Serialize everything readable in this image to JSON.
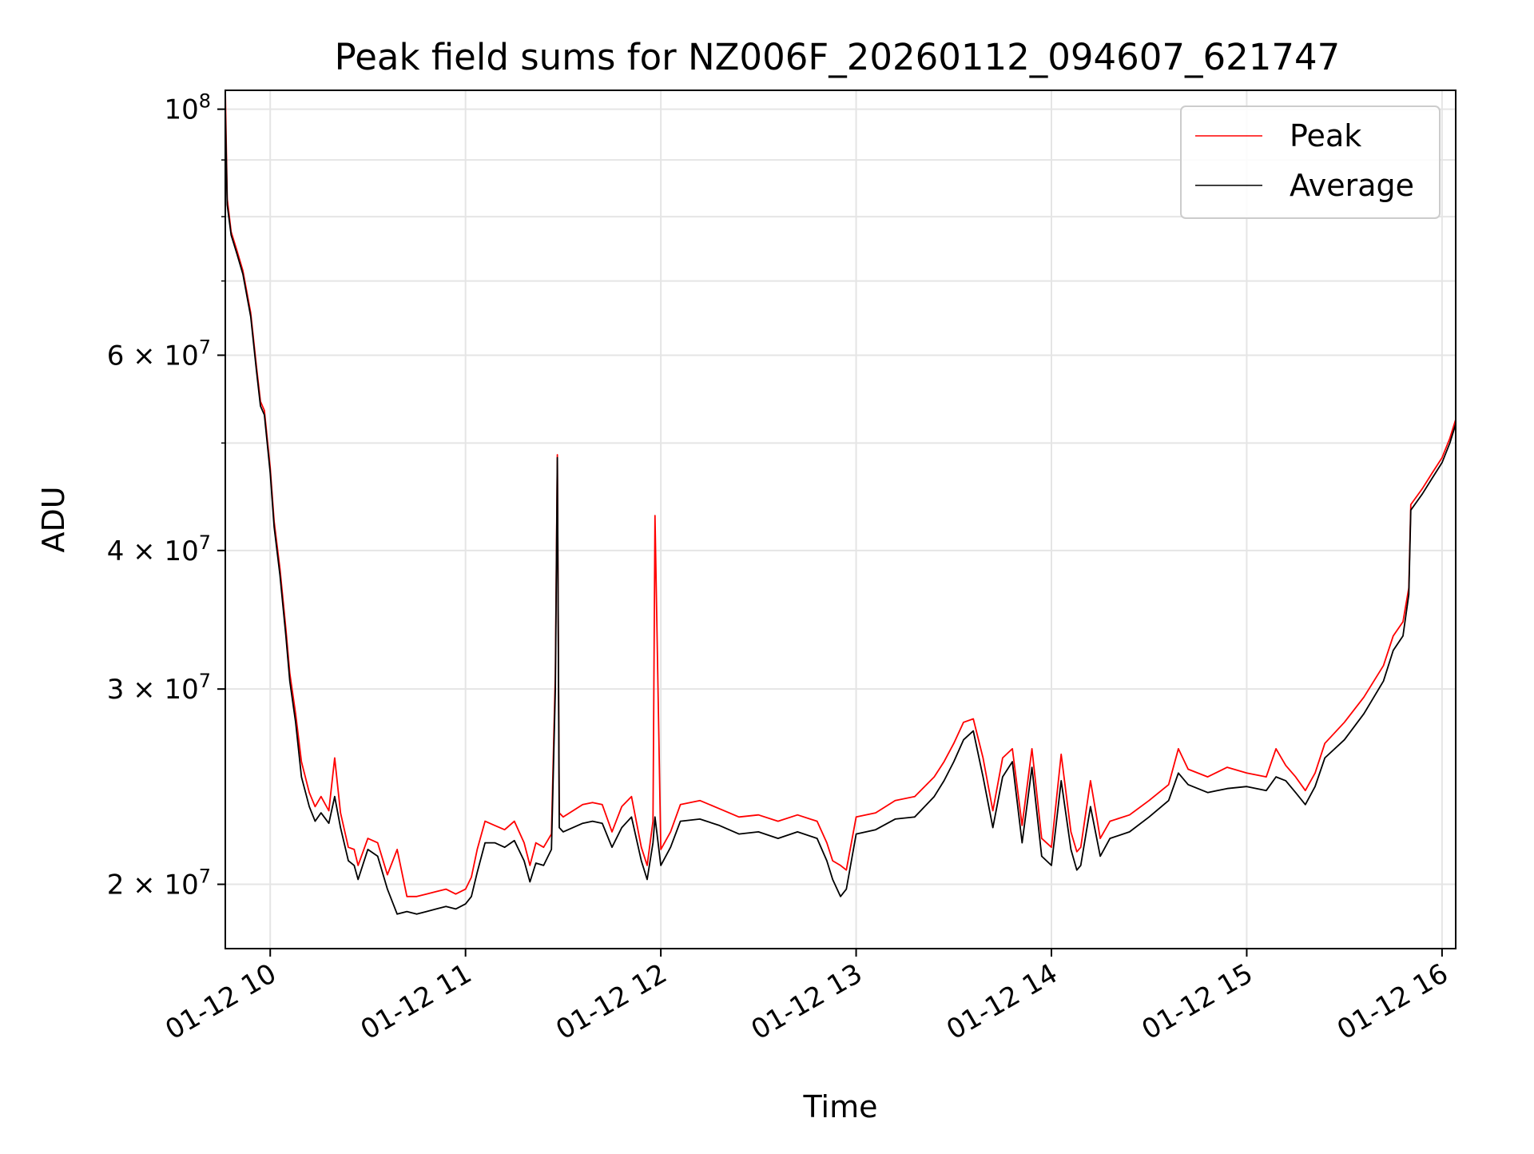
{
  "chart_data": {
    "type": "line",
    "title": "Peak field sums for NZ006F_20260112_094607_621747",
    "xlabel": "Time",
    "ylabel": "ADU",
    "yscale": "log",
    "x_unit": "hours (clock time, 2026-01-12)",
    "xlim": [
      9.77,
      16.07
    ],
    "ylim": [
      17500000,
      104000000
    ],
    "grid": true,
    "legend_position": "top-right",
    "x_ticks": [
      {
        "value": 10,
        "label": "01-12 10"
      },
      {
        "value": 11,
        "label": "01-12 11"
      },
      {
        "value": 12,
        "label": "01-12 12"
      },
      {
        "value": 13,
        "label": "01-12 13"
      },
      {
        "value": 14,
        "label": "01-12 14"
      },
      {
        "value": 15,
        "label": "01-12 15"
      },
      {
        "value": 16,
        "label": "01-12 16"
      }
    ],
    "y_major_ticks": [
      {
        "value": 100000000,
        "base": "10",
        "exp": "8"
      },
      {
        "value": 60000000,
        "base": "6 × 10",
        "exp": "7"
      },
      {
        "value": 40000000,
        "base": "4 × 10",
        "exp": "7"
      },
      {
        "value": 30000000,
        "base": "3 × 10",
        "exp": "7"
      },
      {
        "value": 20000000,
        "base": "2 × 10",
        "exp": "7"
      }
    ],
    "y_minor_ticks": [
      90000000,
      80000000,
      70000000,
      50000000
    ],
    "series": [
      {
        "name": "Average",
        "color": "#000000",
        "x": [
          9.77,
          9.78,
          9.8,
          9.83,
          9.86,
          9.9,
          9.93,
          9.95,
          9.97,
          10.0,
          10.02,
          10.05,
          10.08,
          10.1,
          10.13,
          10.16,
          10.2,
          10.23,
          10.26,
          10.3,
          10.33,
          10.36,
          10.4,
          10.43,
          10.45,
          10.5,
          10.55,
          10.6,
          10.65,
          10.7,
          10.75,
          10.8,
          10.85,
          10.9,
          10.95,
          11.0,
          11.03,
          11.06,
          11.1,
          11.15,
          11.2,
          11.25,
          11.3,
          11.33,
          11.36,
          11.4,
          11.44,
          11.46,
          11.47,
          11.48,
          11.5,
          11.55,
          11.6,
          11.65,
          11.7,
          11.75,
          11.8,
          11.85,
          11.9,
          11.93,
          11.96,
          11.97,
          12.0,
          12.05,
          12.1,
          12.2,
          12.3,
          12.4,
          12.5,
          12.6,
          12.7,
          12.8,
          12.85,
          12.88,
          12.92,
          12.95,
          13.0,
          13.1,
          13.2,
          13.3,
          13.4,
          13.45,
          13.5,
          13.55,
          13.6,
          13.65,
          13.7,
          13.75,
          13.8,
          13.85,
          13.9,
          13.95,
          14.0,
          14.05,
          14.1,
          14.13,
          14.15,
          14.2,
          14.25,
          14.3,
          14.4,
          14.5,
          14.6,
          14.65,
          14.7,
          14.8,
          14.9,
          15.0,
          15.1,
          15.15,
          15.2,
          15.25,
          15.3,
          15.35,
          15.4,
          15.5,
          15.6,
          15.7,
          15.75,
          15.8,
          15.83,
          15.84,
          15.9,
          15.95,
          16.0,
          16.04,
          16.07
        ],
        "values": [
          100000000,
          82000000,
          77000000,
          74000000,
          71000000,
          65000000,
          58000000,
          54000000,
          53000000,
          47000000,
          42000000,
          38000000,
          33500000,
          30500000,
          28000000,
          25000000,
          23500000,
          22800000,
          23200000,
          22700000,
          24000000,
          22500000,
          21000000,
          20800000,
          20200000,
          21500000,
          21200000,
          19800000,
          18800000,
          18900000,
          18800000,
          18900000,
          19000000,
          19100000,
          19000000,
          19200000,
          19500000,
          20500000,
          21800000,
          21800000,
          21600000,
          21900000,
          21000000,
          20100000,
          20900000,
          20800000,
          21500000,
          30000000,
          48500000,
          22500000,
          22300000,
          22500000,
          22700000,
          22800000,
          22700000,
          21600000,
          22500000,
          23000000,
          21000000,
          20200000,
          21800000,
          23000000,
          20800000,
          21600000,
          22800000,
          22900000,
          22600000,
          22200000,
          22300000,
          22000000,
          22300000,
          22000000,
          21000000,
          20200000,
          19500000,
          19800000,
          22200000,
          22400000,
          22900000,
          23000000,
          24000000,
          24800000,
          25800000,
          27000000,
          27500000,
          25000000,
          22500000,
          25000000,
          25800000,
          21800000,
          25500000,
          21200000,
          20800000,
          24800000,
          21500000,
          20600000,
          20800000,
          23500000,
          21200000,
          22000000,
          22300000,
          23000000,
          23800000,
          25200000,
          24600000,
          24200000,
          24400000,
          24500000,
          24300000,
          25000000,
          24800000,
          24200000,
          23600000,
          24500000,
          26000000,
          27000000,
          28500000,
          30500000,
          32500000,
          33500000,
          36500000,
          43500000,
          45000000,
          46500000,
          48000000,
          50000000,
          52000000
        ]
      },
      {
        "name": "Peak",
        "color": "#ff0000",
        "x": [
          9.77,
          9.78,
          9.8,
          9.83,
          9.86,
          9.9,
          9.93,
          9.95,
          9.97,
          10.0,
          10.02,
          10.05,
          10.08,
          10.1,
          10.13,
          10.16,
          10.2,
          10.23,
          10.26,
          10.3,
          10.33,
          10.36,
          10.4,
          10.43,
          10.45,
          10.5,
          10.55,
          10.6,
          10.65,
          10.7,
          10.75,
          10.8,
          10.85,
          10.9,
          10.95,
          11.0,
          11.03,
          11.06,
          11.1,
          11.15,
          11.2,
          11.25,
          11.3,
          11.33,
          11.36,
          11.4,
          11.44,
          11.46,
          11.47,
          11.48,
          11.5,
          11.55,
          11.6,
          11.65,
          11.7,
          11.75,
          11.8,
          11.85,
          11.9,
          11.93,
          11.96,
          11.97,
          12.0,
          12.05,
          12.1,
          12.2,
          12.3,
          12.4,
          12.5,
          12.6,
          12.7,
          12.8,
          12.85,
          12.88,
          12.92,
          12.95,
          13.0,
          13.1,
          13.2,
          13.3,
          13.4,
          13.45,
          13.5,
          13.55,
          13.6,
          13.65,
          13.7,
          13.75,
          13.8,
          13.85,
          13.9,
          13.95,
          14.0,
          14.05,
          14.1,
          14.13,
          14.15,
          14.2,
          14.25,
          14.3,
          14.4,
          14.5,
          14.6,
          14.65,
          14.7,
          14.8,
          14.9,
          15.0,
          15.1,
          15.15,
          15.2,
          15.25,
          15.3,
          15.35,
          15.4,
          15.5,
          15.6,
          15.7,
          15.75,
          15.8,
          15.83,
          15.84,
          15.9,
          15.95,
          16.0,
          16.04,
          16.07
        ],
        "values": [
          104000000,
          83000000,
          77500000,
          74500000,
          71500000,
          65500000,
          58500000,
          54500000,
          53500000,
          47500000,
          42500000,
          38500000,
          34000000,
          31000000,
          28500000,
          25800000,
          24200000,
          23500000,
          24000000,
          23300000,
          26000000,
          23200000,
          21600000,
          21500000,
          20800000,
          22000000,
          21800000,
          20400000,
          21500000,
          19500000,
          19500000,
          19600000,
          19700000,
          19800000,
          19600000,
          19800000,
          20300000,
          21500000,
          22800000,
          22600000,
          22400000,
          22800000,
          21800000,
          20800000,
          21800000,
          21600000,
          22200000,
          31000000,
          48800000,
          23200000,
          23000000,
          23300000,
          23600000,
          23700000,
          23600000,
          22300000,
          23500000,
          24000000,
          21600000,
          20800000,
          22800000,
          43000000,
          21500000,
          22300000,
          23600000,
          23800000,
          23400000,
          23000000,
          23100000,
          22800000,
          23100000,
          22800000,
          21800000,
          21000000,
          20800000,
          20600000,
          23000000,
          23200000,
          23800000,
          24000000,
          25000000,
          25800000,
          26800000,
          28000000,
          28200000,
          26000000,
          23300000,
          26000000,
          26500000,
          22600000,
          26500000,
          22000000,
          21600000,
          26200000,
          22300000,
          21400000,
          21600000,
          24800000,
          22000000,
          22800000,
          23100000,
          23800000,
          24600000,
          26500000,
          25400000,
          25000000,
          25500000,
          25200000,
          25000000,
          26500000,
          25600000,
          25000000,
          24300000,
          25200000,
          26800000,
          28000000,
          29500000,
          31500000,
          33500000,
          34500000,
          37000000,
          44000000,
          45500000,
          47000000,
          48500000,
          50500000,
          52500000
        ]
      }
    ]
  }
}
